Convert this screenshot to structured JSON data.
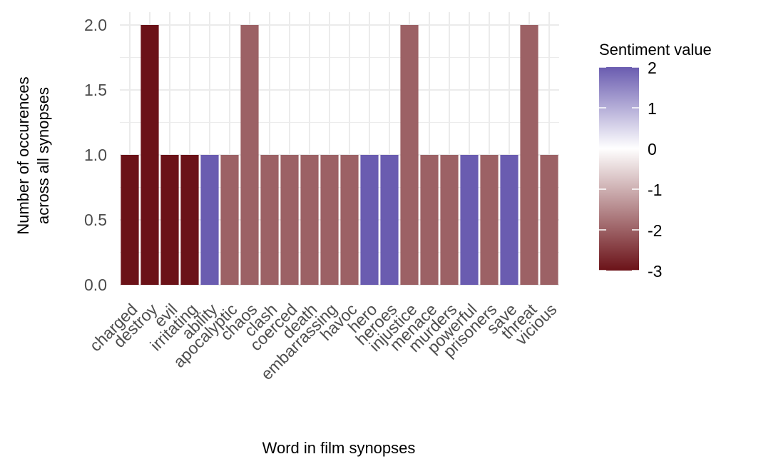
{
  "chart_data": {
    "type": "bar",
    "title": "",
    "xlabel": "Word in film synopses",
    "ylabel_lines": [
      "Number of occurences",
      "across all synopses"
    ],
    "ylim": [
      0,
      2.1
    ],
    "yticks": [
      "0.0",
      "0.5",
      "1.0",
      "1.5",
      "2.0"
    ],
    "ytick_values": [
      0,
      0.5,
      1,
      1.5,
      2
    ],
    "grid": true,
    "categories": [
      "charged",
      "destroy",
      "evil",
      "irritating",
      "ability",
      "apocalyptic",
      "chaos",
      "clash",
      "coerced",
      "death",
      "embarrassing",
      "havoc",
      "hero",
      "heroes",
      "injustice",
      "menace",
      "murders",
      "powerful",
      "prisoners",
      "save",
      "threat",
      "vicious"
    ],
    "values": [
      1,
      2,
      1,
      1,
      1,
      1,
      2,
      1,
      1,
      1,
      1,
      1,
      1,
      1,
      2,
      1,
      1,
      1,
      1,
      1,
      2,
      1
    ],
    "sentiment": [
      -3,
      -3,
      -3,
      -3,
      2,
      -2,
      -2,
      -2,
      -2,
      -2,
      -2,
      -2,
      2,
      2,
      -2,
      -2,
      -2,
      2,
      -2,
      2,
      -2,
      -2
    ],
    "legend": {
      "title": "Sentiment value",
      "position": "right",
      "labels": [
        "2",
        "1",
        "0",
        "-1",
        "-2",
        "-3"
      ],
      "values": [
        2,
        1,
        0,
        -1,
        -2,
        -3
      ],
      "colors": {
        "low": "#6b1218",
        "mid": "#ffffff",
        "high": "#6a5cb0"
      }
    }
  }
}
